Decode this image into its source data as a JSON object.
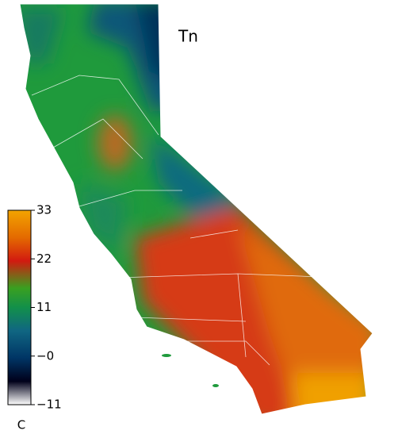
{
  "map": {
    "title": "Tn",
    "colorbar": {
      "lim": [
        -11,
        33
      ],
      "ticks": [
        33,
        22,
        11,
        {
          "value": 0,
          "label": "−0"
        },
        {
          "value": -11,
          "label": "−11"
        }
      ],
      "unit": "C"
    }
  }
}
